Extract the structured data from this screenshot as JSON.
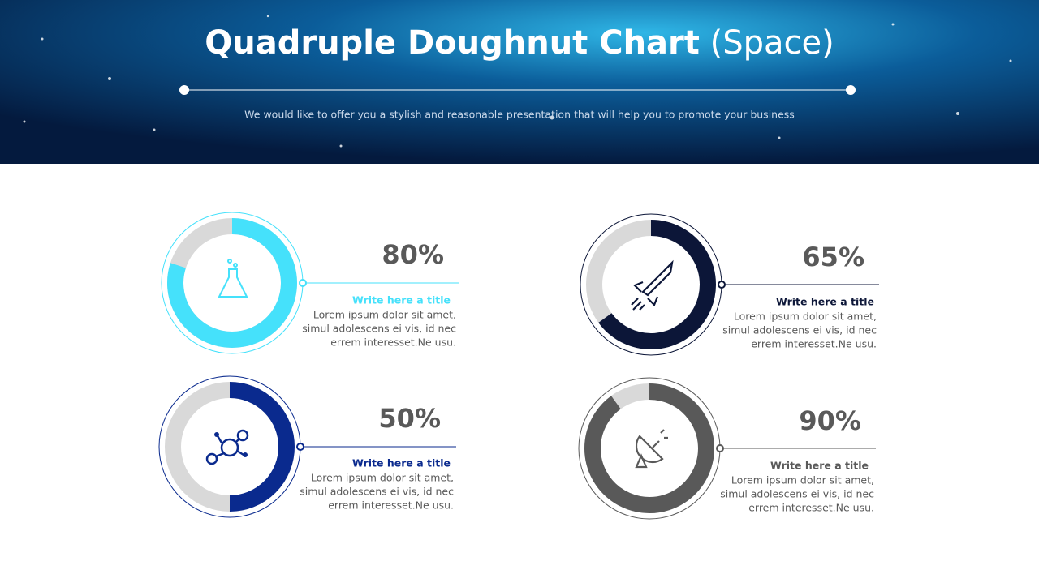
{
  "header": {
    "title": "Quadruple Doughnut Chart",
    "title_suffix": "(Space)",
    "subtitle": "We would like to offer you a stylish and reasonable presentation that will help you to promote your business"
  },
  "chart_data": [
    {
      "type": "doughnut",
      "values": [
        80
      ],
      "value_labels": [
        "80%"
      ],
      "color": "#45e1fb",
      "title": "Write here a title",
      "text": [
        "Lorem ipsum dolor sit amet,",
        "simul adolescens ei vis, id nec",
        "errem interesset.Ne usu."
      ]
    },
    {
      "type": "doughnut",
      "values": [
        65
      ],
      "value_labels": [
        "65%"
      ],
      "color": "#0c1638",
      "title": "Write here a title",
      "text": [
        "Lorem ipsum dolor sit amet,",
        "simul adolescens ei vis, id nec",
        "errem interesset.Ne usu."
      ]
    },
    {
      "type": "doughnut",
      "values": [
        50
      ],
      "value_labels": [
        "50%"
      ],
      "color": "#0a2a8e",
      "title": "Write here a title",
      "text": [
        "Lorem ipsum dolor sit amet,",
        "simul adolescens ei vis, id nec",
        "errem interesset.Ne usu."
      ]
    },
    {
      "type": "doughnut",
      "values": [
        90
      ],
      "value_labels": [
        "90%"
      ],
      "color": "#595959",
      "title": "Write here a title",
      "text": [
        "Lorem ipsum dolor sit amet,",
        "simul adolescens ei vis, id nec",
        "errem interesset.Ne usu."
      ]
    }
  ]
}
